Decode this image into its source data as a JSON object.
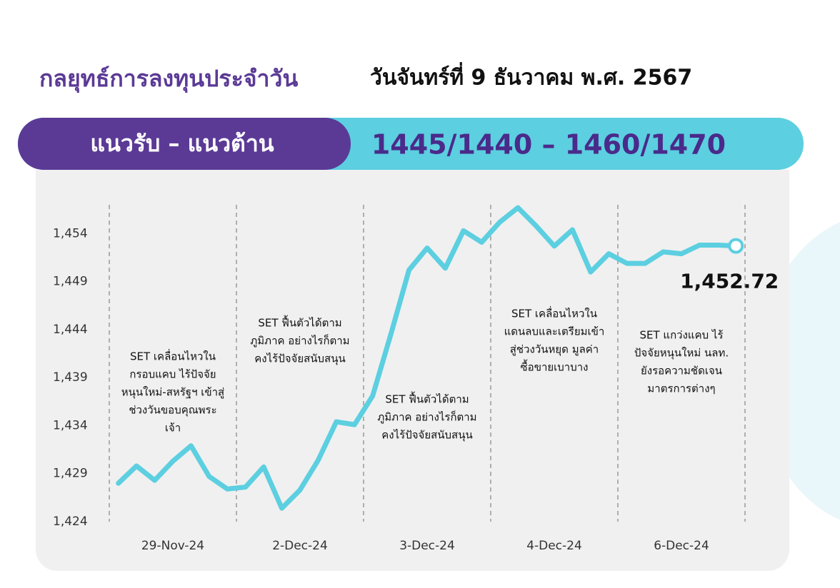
{
  "header": {
    "title": "กลยุทธ์การลงทุนประจำวัน",
    "date": "วันจันทร์ที่ 9 ธันวาคม พ.ศ. 2567"
  },
  "levels": {
    "label": "แนวรับ – แนวต้าน",
    "value": "1445/1440 – 1460/1470"
  },
  "chart_data": {
    "type": "line",
    "categories": [
      null,
      null,
      null,
      "29-Nov-24",
      null,
      null,
      null,
      null,
      null,
      null,
      "2-Dec-24",
      null,
      null,
      null,
      null,
      null,
      null,
      "3-Dec-24",
      null,
      null,
      null,
      null,
      null,
      null,
      "4-Dec-24",
      null,
      null,
      null,
      null,
      null,
      null,
      "6-Dec-24",
      null,
      null,
      null
    ],
    "series": [
      {
        "name": "SET",
        "color": "#5ccfe0",
        "values": [
          1428.0,
          1429.8,
          1428.3,
          1430.3,
          1431.9,
          1428.7,
          1427.4,
          1427.6,
          1429.7,
          1425.4,
          1427.3,
          1430.4,
          1434.4,
          1434.1,
          1437.1,
          1443.5,
          1450.2,
          1452.5,
          1450.4,
          1454.3,
          1453.1,
          1455.2,
          1456.7,
          1454.8,
          1452.7,
          1454.4,
          1450.0,
          1451.9,
          1450.9,
          1450.9,
          1452.1,
          1451.9,
          1452.8,
          1452.8,
          1452.72
        ],
        "value_labels": [
          null,
          null,
          null,
          null,
          null,
          null,
          null,
          null,
          null,
          null,
          null,
          null,
          null,
          null,
          null,
          null,
          null,
          null,
          null,
          null,
          null,
          null,
          null,
          null,
          null,
          null,
          null,
          null,
          null,
          null,
          null,
          null,
          null,
          null,
          "1,452.72"
        ]
      }
    ],
    "ylim": [
      1424,
      1457
    ],
    "yticks": [
      {
        "value": 1424,
        "label": "1,424"
      },
      {
        "value": 1429,
        "label": "1,429"
      },
      {
        "value": 1434,
        "label": "1,434"
      },
      {
        "value": 1439,
        "label": "1,439"
      },
      {
        "value": 1444,
        "label": "1,444"
      },
      {
        "value": 1449,
        "label": "1,449"
      },
      {
        "value": 1454,
        "label": "1,454"
      }
    ],
    "grid": false,
    "annotations": [
      {
        "lines": [
          "SET เคลื่อนไหวใน",
          "กรอบแคบ ไร้ปัจจัย",
          "หนุนใหม่-สหรัฐฯ เข้าสู่",
          "ช่วงวันขอบคุณพระ",
          "เจ้า"
        ]
      },
      {
        "lines": [
          "SET ฟื้นตัวได้ตาม",
          "ภูมิภาค อย่างไรก็ตาม",
          "คงไร้ปัจจัยสนับสนุน"
        ]
      },
      {
        "lines": [
          "SET ฟื้นตัวได้ตาม",
          "ภูมิภาค อย่างไรก็ตาม",
          "คงไร้ปัจจัยสนับสนุน"
        ]
      },
      {
        "lines": [
          "SET เคลื่อนไหวใน",
          "แดนลบและเตรียมเข้า",
          "สู่ช่วงวันหยุด มูลค่า",
          "ซื้อขายเบาบาง"
        ]
      },
      {
        "lines": [
          "SET แกว่งแคบ ไร้",
          "ปัจจัยหนุนใหม่ นลท.",
          "ยังรอความชัดเจน",
          "มาตรการต่างๆ"
        ]
      }
    ]
  }
}
